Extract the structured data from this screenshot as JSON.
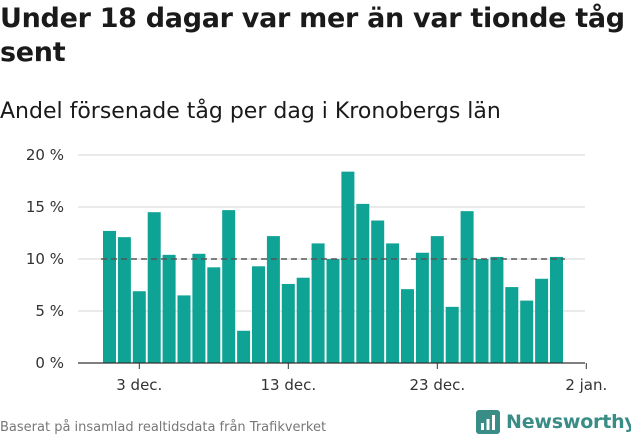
{
  "header": {
    "title": "Under 18 dagar var mer än var tionde tåg sent",
    "subtitle": "Andel försenade tåg per dag i Kronobergs län"
  },
  "footer": {
    "source": "Baserat på insamlad realtidsdata från Trafikverket",
    "brand": "Newsworthy"
  },
  "colors": {
    "bar": "#0fa396",
    "reference_line": "#555555",
    "grid": "#d6d6d6",
    "brand": "#3a8c86"
  },
  "chart_data": {
    "type": "bar",
    "title": "Under 18 dagar var mer än var tionde tåg sent",
    "subtitle": "Andel försenade tåg per dag i Kronobergs län",
    "xlabel": "",
    "ylabel": "",
    "x_start": "2019-12-01",
    "x_end": "2019-12-31",
    "values": [
      12.7,
      12.1,
      6.9,
      14.5,
      10.4,
      6.5,
      10.5,
      9.2,
      14.7,
      3.1,
      9.3,
      12.2,
      7.6,
      8.2,
      11.5,
      10.0,
      18.4,
      15.3,
      13.7,
      11.5,
      7.1,
      10.6,
      12.2,
      5.4,
      14.6,
      10.0,
      10.2,
      7.3,
      6.0,
      8.1,
      10.2
    ],
    "ylim": [
      0,
      20
    ],
    "yticks": [
      0,
      5,
      10,
      15,
      20
    ],
    "ytick_labels": [
      "0 %",
      "5 %",
      "10 %",
      "15 %",
      "20 %"
    ],
    "xticks": [
      {
        "date": "2019-12-03",
        "label": "3 dec."
      },
      {
        "date": "2019-12-13",
        "label": "13 dec."
      },
      {
        "date": "2019-12-23",
        "label": "23 dec."
      },
      {
        "date": "2020-01-02",
        "label": "2 jan."
      }
    ],
    "reference_line": {
      "value": 10,
      "style": "dashed"
    },
    "grid": true,
    "legend": "none"
  }
}
